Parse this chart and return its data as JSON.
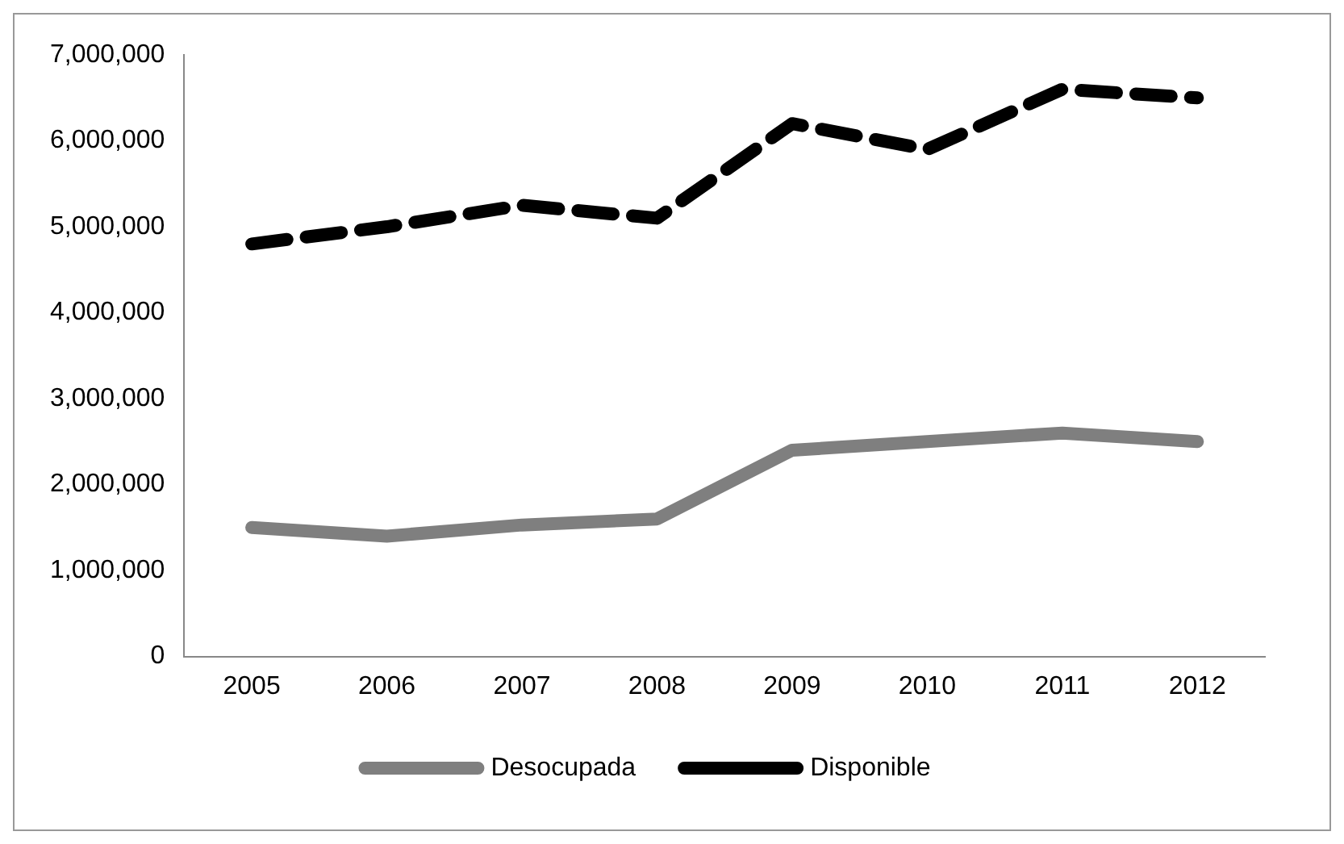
{
  "chart_data": {
    "type": "line",
    "categories": [
      "2005",
      "2006",
      "2007",
      "2008",
      "2009",
      "2010",
      "2011",
      "2012"
    ],
    "series": [
      {
        "name": "Desocupada",
        "color": "#7f7f7f",
        "line_style": "solid",
        "values": [
          1500000,
          1400000,
          1530000,
          1600000,
          2400000,
          2500000,
          2600000,
          2500000
        ]
      },
      {
        "name": "Disponible",
        "color": "#000000",
        "line_style": "dashed",
        "values": [
          4800000,
          5000000,
          5250000,
          5100000,
          6200000,
          5900000,
          6600000,
          6500000
        ]
      }
    ],
    "ylim": [
      0,
      7000000
    ],
    "yticks": [
      {
        "value": 0,
        "label": "0"
      },
      {
        "value": 1000000,
        "label": "1,000,000"
      },
      {
        "value": 2000000,
        "label": "2,000,000"
      },
      {
        "value": 3000000,
        "label": "3,000,000"
      },
      {
        "value": 4000000,
        "label": "4,000,000"
      },
      {
        "value": 5000000,
        "label": "5,000,000"
      },
      {
        "value": 6000000,
        "label": "6,000,000"
      },
      {
        "value": 7000000,
        "label": "7,000,000"
      }
    ],
    "grid": false,
    "legend": "bottom",
    "marker": "none"
  }
}
